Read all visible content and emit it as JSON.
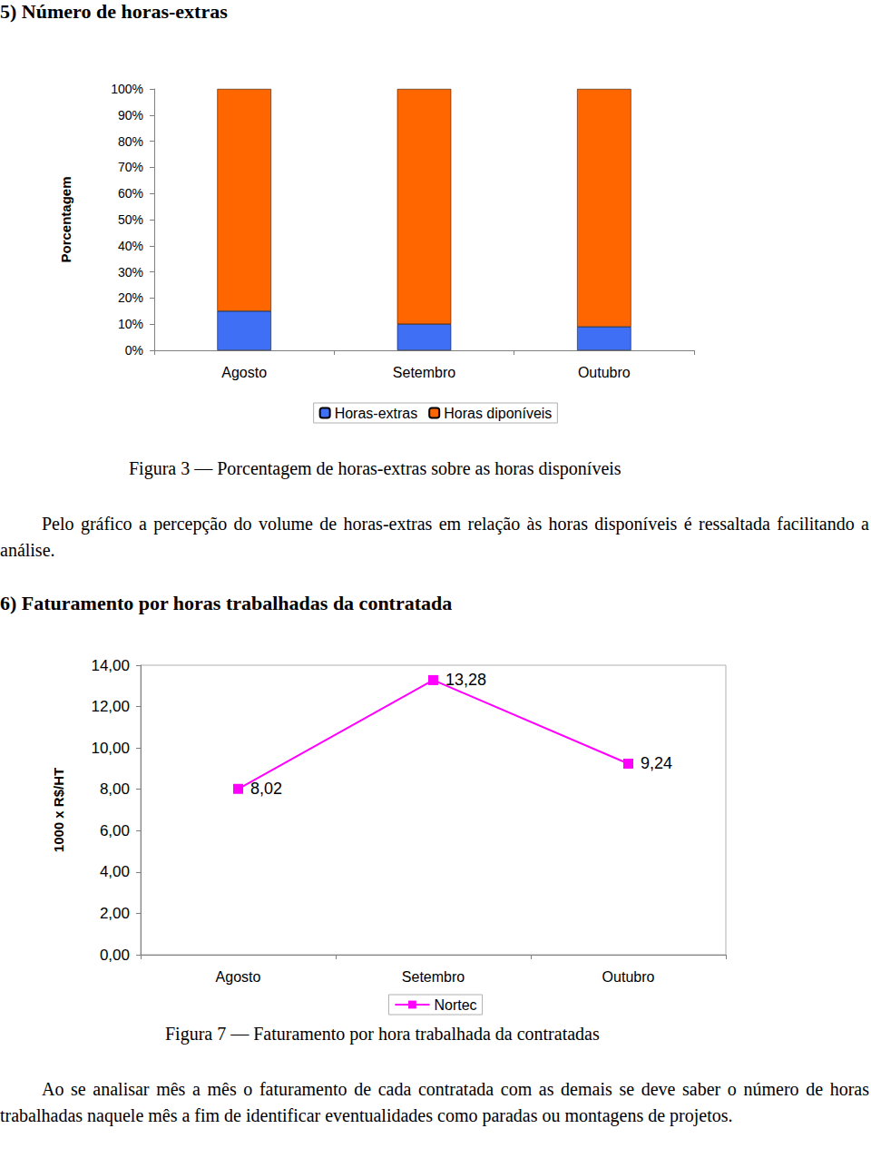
{
  "heading_5": "5)  Número de horas-extras",
  "caption_3": "Figura 3 — Porcentagem de horas-extras sobre as horas disponíveis",
  "paragraph_1": "Pelo gráfico a percepção do volume de horas-extras em relação às horas disponíveis é ressaltada facilitando a análise.",
  "heading_6": "6)  Faturamento por horas trabalhadas da contratada",
  "caption_7": "Figura 7 — Faturamento por hora trabalhada da contratadas",
  "paragraph_2": "Ao se analisar mês a mês o faturamento de cada contratada com as demais se deve saber o número de horas trabalhadas naquele mês a fim de identificar eventualidades como paradas ou montagens de projetos.",
  "chart_data": [
    {
      "type": "bar",
      "stacked": true,
      "y_label": "Porcentagem",
      "categories": [
        "Agosto",
        "Setembro",
        "Outubro"
      ],
      "series": [
        {
          "name": "Horas-extras",
          "color": "#3f6ff5",
          "values": [
            15,
            10,
            9
          ]
        },
        {
          "name": "Horas diponíveis",
          "color": "#ff6600",
          "values": [
            85,
            90,
            91
          ]
        }
      ],
      "ylim": [
        0,
        100
      ],
      "yticks": [
        {
          "value": 0,
          "label": "0%"
        },
        {
          "value": 10,
          "label": "10%"
        },
        {
          "value": 20,
          "label": "20%"
        },
        {
          "value": 30,
          "label": "30%"
        },
        {
          "value": 40,
          "label": "40%"
        },
        {
          "value": 50,
          "label": "50%"
        },
        {
          "value": 60,
          "label": "60%"
        },
        {
          "value": 70,
          "label": "70%"
        },
        {
          "value": 80,
          "label": "80%"
        },
        {
          "value": 90,
          "label": "90%"
        },
        {
          "value": 100,
          "label": "100%"
        }
      ],
      "grid": false,
      "legend": "bottom"
    },
    {
      "type": "line",
      "y_label": "1000 x R$/HT",
      "categories": [
        "Agosto",
        "Setembro",
        "Outubro"
      ],
      "series": [
        {
          "name": "Nortec",
          "color": "#ff00ff",
          "marker": "square",
          "line_style": "solid",
          "values": [
            8.02,
            13.28,
            9.24
          ],
          "value_labels": [
            "8,02",
            "13,28",
            "9,24"
          ]
        }
      ],
      "ylim": [
        0,
        14
      ],
      "yticks": [
        {
          "value": 0,
          "label": "0,00"
        },
        {
          "value": 2,
          "label": "2,00"
        },
        {
          "value": 4,
          "label": "4,00"
        },
        {
          "value": 6,
          "label": "6,00"
        },
        {
          "value": 8,
          "label": "8,00"
        },
        {
          "value": 10,
          "label": "10,00"
        },
        {
          "value": 12,
          "label": "12,00"
        },
        {
          "value": 14,
          "label": "14,00"
        }
      ],
      "data_labels": true,
      "grid": false,
      "legend": "bottom"
    }
  ]
}
